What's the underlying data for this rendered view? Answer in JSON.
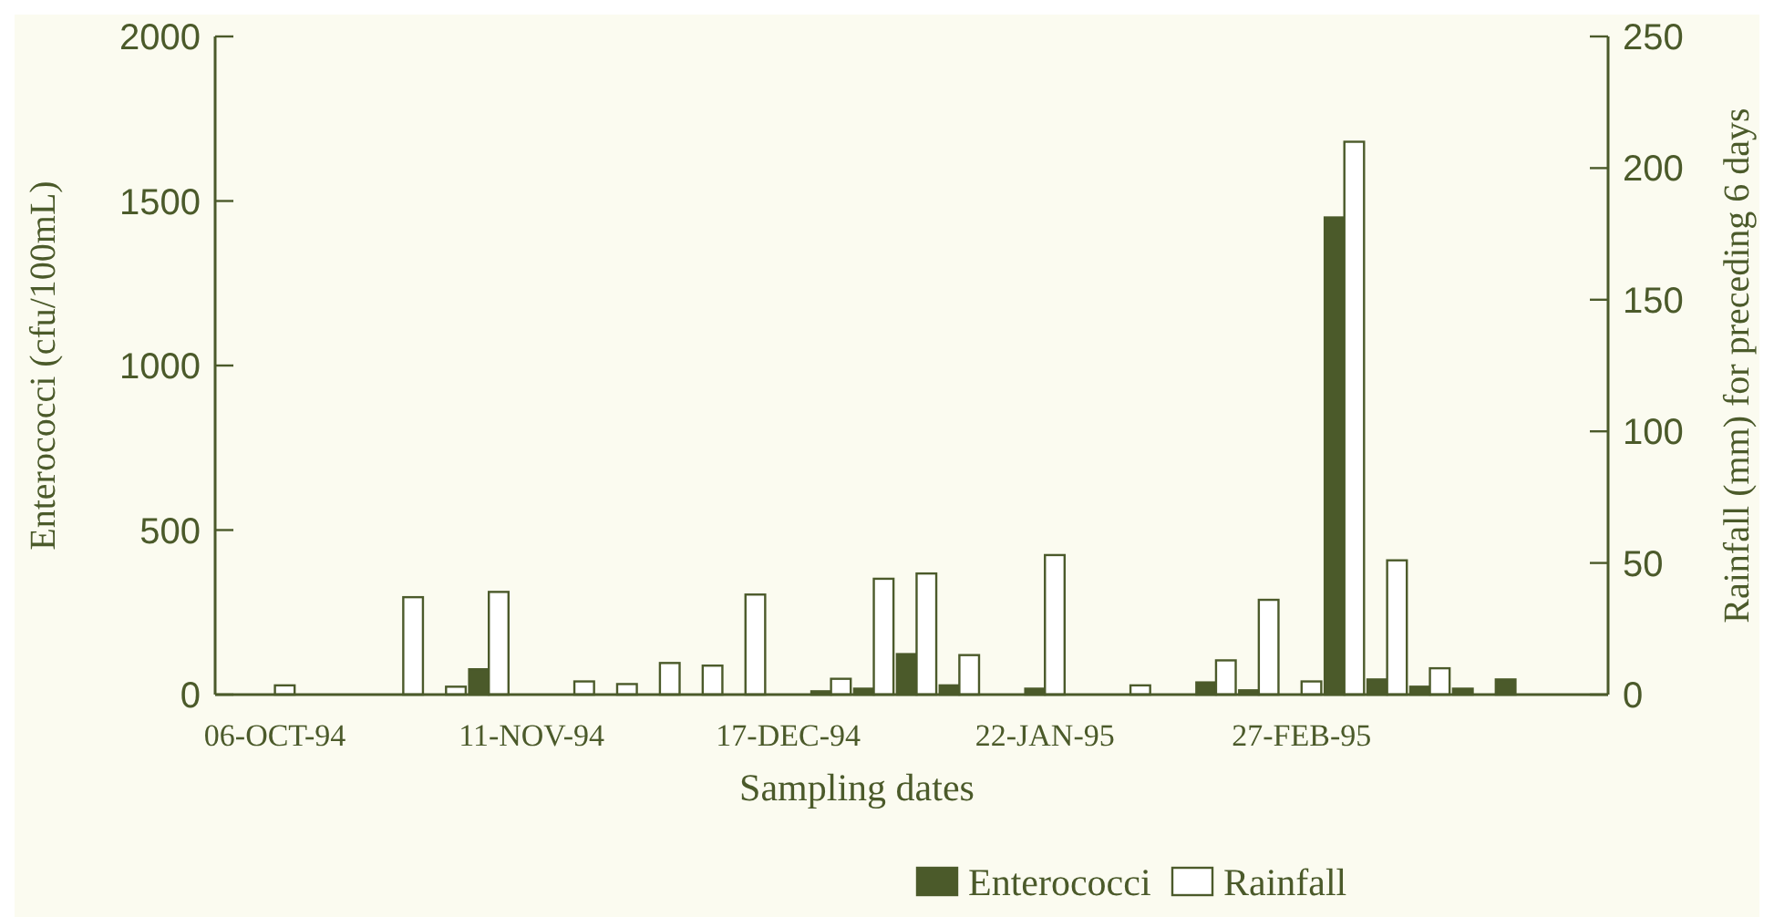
{
  "chart_data": {
    "type": "bar",
    "xlabel": "Sampling dates",
    "ylabel": "Enterococci (cfu/100mL)",
    "y2label": "Rainfall (mm) for preceding 6 days",
    "categories": [
      "06-OCT-94",
      null,
      null,
      null,
      null,
      null,
      "11-NOV-94",
      null,
      null,
      null,
      null,
      null,
      "17-DEC-94",
      null,
      null,
      null,
      null,
      null,
      "22-JAN-95",
      null,
      null,
      null,
      null,
      null,
      "27-FEB-95",
      null,
      null,
      null,
      null,
      null
    ],
    "series": [
      {
        "name": "Enterococci",
        "color": "#4b5a2a",
        "values": [
          0,
          0,
          0,
          0,
          0,
          77,
          0,
          0,
          0,
          0,
          0,
          0,
          0,
          10,
          18,
          123,
          28,
          0,
          18,
          0,
          0,
          0,
          37,
          13,
          0,
          1450,
          46,
          24,
          18,
          46
        ]
      },
      {
        "name": "Rainfall",
        "color": "#ffffff",
        "axis": "y2",
        "values": [
          3.5,
          0,
          0,
          37,
          3,
          39,
          0,
          5,
          4,
          12,
          11,
          38,
          0,
          6,
          44,
          46,
          15,
          0,
          53,
          0,
          3.5,
          0,
          13,
          36,
          5,
          210,
          51,
          10,
          0,
          0
        ]
      }
    ],
    "ylim": [
      0,
      2000
    ],
    "yticks": [
      0,
      500,
      1000,
      1500,
      2000
    ],
    "y2lim": [
      0,
      250
    ],
    "y2ticks": [
      0,
      50,
      100,
      150,
      200,
      250
    ],
    "legend": "bottom"
  }
}
